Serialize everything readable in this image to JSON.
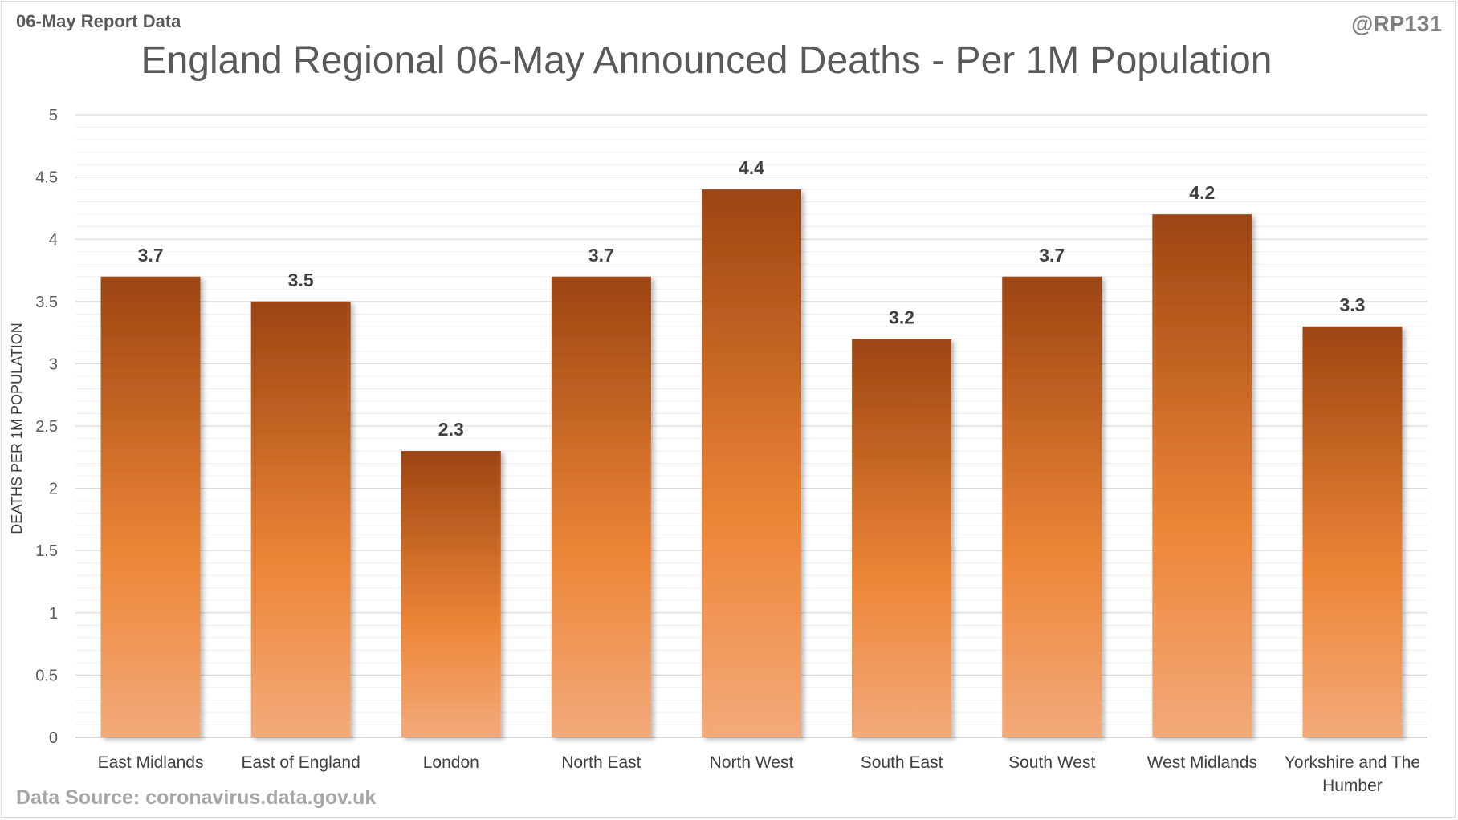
{
  "header": {
    "report_label": "06-May Report Data",
    "handle": "@RP131"
  },
  "footer": {
    "source": "Data Source: coronavirus.data.gov.uk"
  },
  "colors": {
    "bar_top": "#9c4512",
    "bar_mid": "#ed8537",
    "bar_bottom": "#f3aa7a",
    "gridline_major": "#d9d9d9",
    "gridline_minor": "#efefef"
  },
  "chart_data": {
    "type": "bar",
    "title": "England Regional 06-May Announced Deaths - Per 1M Population",
    "xlabel": "",
    "ylabel": "DEATHS PER 1M POPULATION",
    "ylim": [
      0,
      5
    ],
    "y_ticks": [
      "0",
      "0.5",
      "1",
      "1.5",
      "2",
      "2.5",
      "3",
      "3.5",
      "4",
      "4.5",
      "5"
    ],
    "y_tick_values": [
      0,
      0.5,
      1,
      1.5,
      2,
      2.5,
      3,
      3.5,
      4,
      4.5,
      5
    ],
    "minor_step": 0.1,
    "grid": true,
    "legend": "none",
    "categories": [
      [
        "East Midlands"
      ],
      [
        "East of England"
      ],
      [
        "London"
      ],
      [
        "North East"
      ],
      [
        "North West"
      ],
      [
        "South East"
      ],
      [
        "South West"
      ],
      [
        "West Midlands"
      ],
      [
        "Yorkshire and The",
        "Humber"
      ]
    ],
    "values": [
      3.7,
      3.5,
      2.3,
      3.7,
      4.4,
      3.2,
      3.7,
      4.2,
      3.3
    ],
    "data_labels": [
      "3.7",
      "3.5",
      "2.3",
      "3.7",
      "4.4",
      "3.2",
      "3.7",
      "4.2",
      "3.3"
    ]
  }
}
